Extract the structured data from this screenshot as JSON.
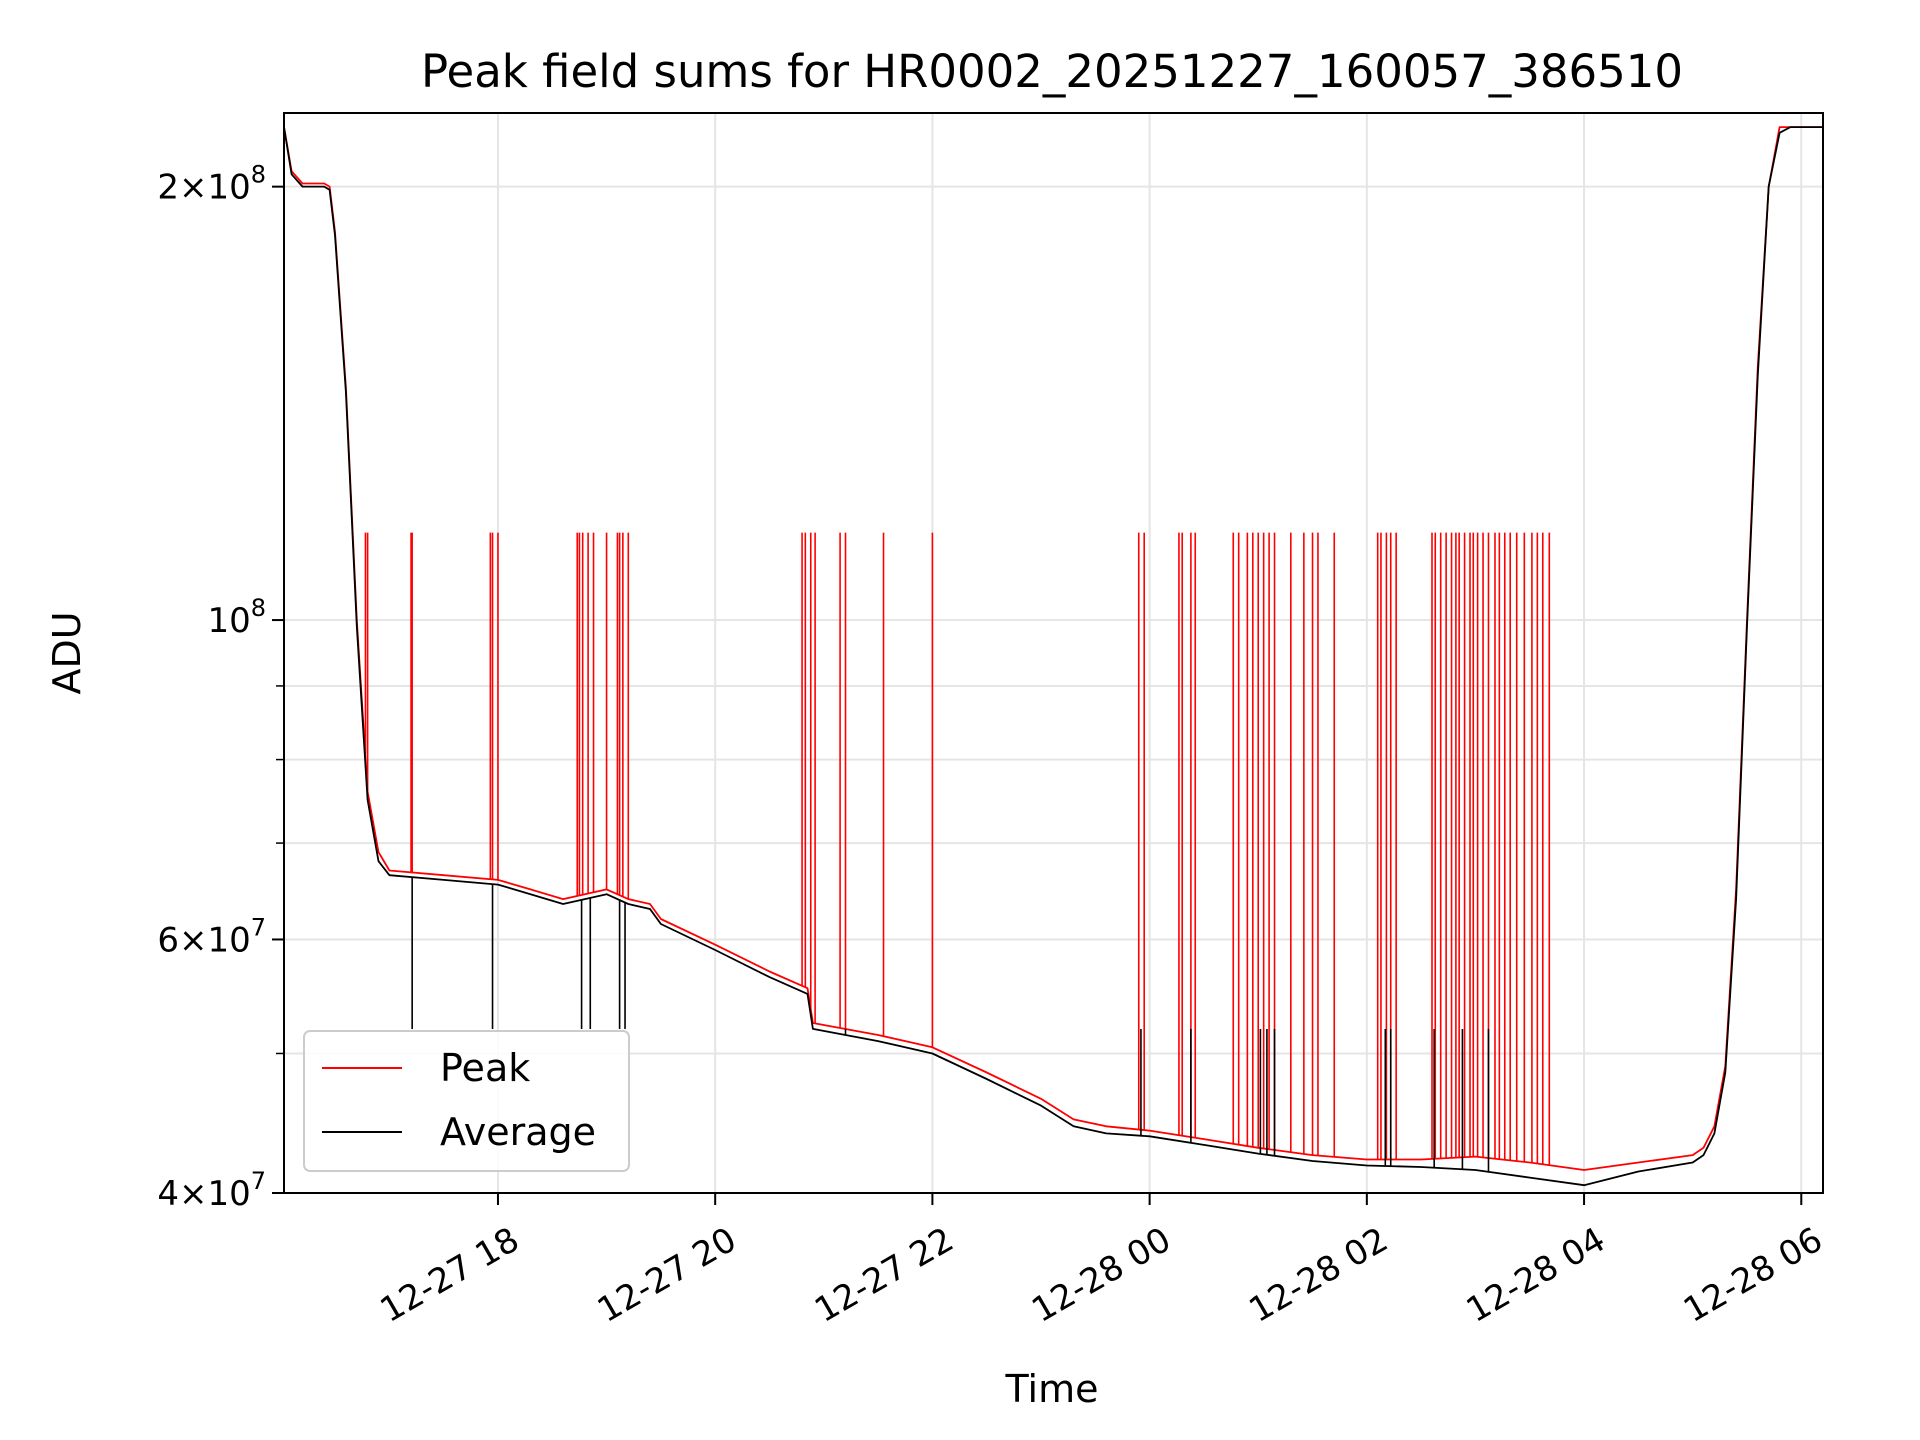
{
  "chart_data": {
    "type": "line",
    "title": "Peak field sums for HR0002_20251227_160057_386510",
    "xlabel": "Time",
    "ylabel": "ADU",
    "yscale": "log",
    "ylim": [
      40000000,
      225000000
    ],
    "xlim_hours": [
      16.03,
      30.2
    ],
    "grid": true,
    "legend_position": "lower-left",
    "x_ticks": [
      {
        "label": "12-27 18",
        "hour": 18
      },
      {
        "label": "12-27 20",
        "hour": 20
      },
      {
        "label": "12-27 22",
        "hour": 22
      },
      {
        "label": "12-28 00",
        "hour": 24
      },
      {
        "label": "12-28 02",
        "hour": 26
      },
      {
        "label": "12-28 04",
        "hour": 28
      },
      {
        "label": "12-28 06",
        "hour": 30
      }
    ],
    "y_major_ticks": [
      {
        "label_base": "4×10",
        "exp": "7",
        "value": 40000000
      },
      {
        "label_base": "6×10",
        "exp": "7",
        "value": 60000000
      },
      {
        "label_base": "10",
        "exp": "8",
        "value": 100000000
      },
      {
        "label_base": "2×10",
        "exp": "8",
        "value": 200000000
      }
    ],
    "y_minor_ticks": [
      50000000,
      70000000,
      80000000,
      90000000
    ],
    "series": [
      {
        "name": "Peak",
        "color": "#ff0000",
        "hours": [
          16.03,
          16.1,
          16.2,
          16.3,
          16.4,
          16.45,
          16.5,
          16.6,
          16.7,
          16.8,
          16.9,
          17.0,
          17.5,
          18.0,
          18.3,
          18.6,
          18.8,
          19.0,
          19.2,
          19.4,
          19.5,
          20.0,
          20.5,
          20.85,
          20.9,
          21.5,
          22.0,
          22.5,
          23.0,
          23.3,
          23.6,
          24.0,
          24.5,
          25.0,
          25.5,
          26.0,
          26.5,
          27.0,
          27.5,
          28.0,
          28.5,
          29.0,
          29.1,
          29.2,
          29.3,
          29.4,
          29.5,
          29.6,
          29.7,
          29.8,
          29.9,
          30.0,
          30.2
        ],
        "values": [
          220000000,
          205000000,
          201000000,
          201000000,
          201000000,
          200000000,
          186000000,
          145000000,
          100000000,
          76000000,
          69000000,
          67000000,
          66500000,
          66000000,
          65000000,
          64000000,
          64500000,
          65000000,
          64000000,
          63500000,
          62000000,
          59500000,
          57000000,
          55500000,
          52500000,
          51500000,
          50500000,
          48500000,
          46500000,
          45000000,
          44500000,
          44200000,
          43600000,
          43000000,
          42500000,
          42200000,
          42200000,
          42400000,
          42000000,
          41500000,
          42000000,
          42500000,
          43000000,
          44500000,
          49000000,
          65000000,
          100000000,
          150000000,
          200000000,
          220000000,
          220000000,
          220000000,
          220000000
        ],
        "spike_value": 115000000,
        "spike_hours": [
          16.78,
          16.8,
          17.2,
          17.21,
          17.93,
          17.95,
          18.0,
          18.73,
          18.75,
          18.78,
          18.83,
          18.88,
          19.0,
          19.1,
          19.12,
          19.15,
          19.2,
          20.8,
          20.83,
          20.88,
          20.92,
          21.15,
          21.2,
          21.55,
          22.0,
          23.9,
          23.95,
          24.27,
          24.3,
          24.38,
          24.42,
          24.77,
          24.82,
          24.9,
          24.95,
          25.0,
          25.05,
          25.1,
          25.15,
          25.3,
          25.42,
          25.5,
          25.55,
          25.7,
          26.1,
          26.13,
          26.18,
          26.22,
          26.27,
          26.6,
          26.63,
          26.68,
          26.73,
          26.78,
          26.82,
          26.85,
          26.9,
          26.95,
          26.98,
          27.02,
          27.07,
          27.12,
          27.18,
          27.22,
          27.27,
          27.32,
          27.38,
          27.45,
          27.52,
          27.57,
          27.62,
          27.68
        ]
      },
      {
        "name": "Average",
        "color": "#000000",
        "hours": [
          16.03,
          16.1,
          16.2,
          16.3,
          16.4,
          16.45,
          16.5,
          16.6,
          16.7,
          16.8,
          16.9,
          17.0,
          17.5,
          18.0,
          18.3,
          18.6,
          18.8,
          19.0,
          19.2,
          19.4,
          19.5,
          20.0,
          20.5,
          20.85,
          20.9,
          21.5,
          22.0,
          22.5,
          23.0,
          23.3,
          23.6,
          24.0,
          24.5,
          25.0,
          25.5,
          26.0,
          26.5,
          27.0,
          27.5,
          28.0,
          28.5,
          29.0,
          29.1,
          29.2,
          29.3,
          29.4,
          29.5,
          29.6,
          29.7,
          29.8,
          29.9,
          30.0,
          30.2
        ],
        "values": [
          220000000,
          204000000,
          200000000,
          200000000,
          200000000,
          199000000,
          185000000,
          144000000,
          99000000,
          75000000,
          68000000,
          66500000,
          66000000,
          65500000,
          64500000,
          63500000,
          64000000,
          64500000,
          63500000,
          63000000,
          61500000,
          59000000,
          56500000,
          55000000,
          52000000,
          51000000,
          50000000,
          48000000,
          46000000,
          44500000,
          44000000,
          43800000,
          43200000,
          42600000,
          42100000,
          41800000,
          41700000,
          41500000,
          41000000,
          40500000,
          41400000,
          42000000,
          42500000,
          44000000,
          48500000,
          64000000,
          99000000,
          148000000,
          200000000,
          218000000,
          220000000,
          220000000,
          220000000
        ],
        "spike_value": 52000000,
        "spike_hours": [
          17.21,
          17.95,
          18.77,
          18.85,
          19.12,
          19.17,
          20.92,
          21.2,
          23.92,
          24.38,
          25.02,
          25.08,
          25.15,
          26.17,
          26.22,
          26.62,
          26.88,
          27.12
        ]
      }
    ]
  }
}
